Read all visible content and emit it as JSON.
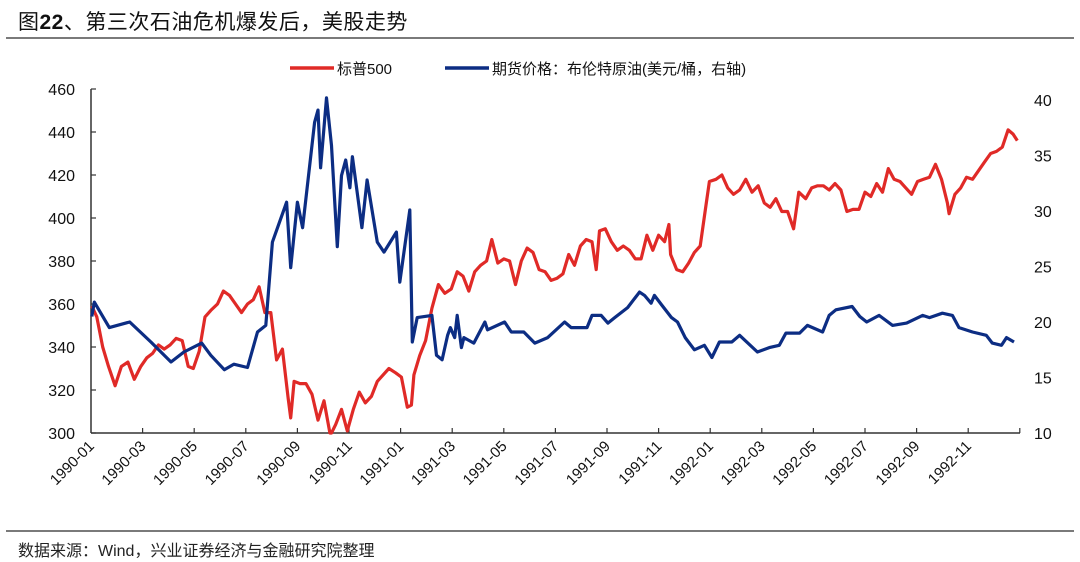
{
  "header": {
    "title_prefix": "图",
    "title_number": "22",
    "title_text": "、第三次石油危机爆发后，美股走势"
  },
  "footer": {
    "source": "数据来源：Wind，兴业证券经济与金融研究院整理"
  },
  "chart_data": {
    "type": "line",
    "title": "图22、第三次石油危机爆发后，美股走势",
    "legend_position": "top-center",
    "grid": false,
    "x_ticks": [
      "1990-01",
      "1990-03",
      "1990-05",
      "1990-07",
      "1990-09",
      "1990-11",
      "1991-01",
      "1991-03",
      "1991-05",
      "1991-07",
      "1991-09",
      "1991-11",
      "1992-01",
      "1992-03",
      "1992-05",
      "1992-07",
      "1992-09",
      "1992-11"
    ],
    "x_range": [
      "1990-01-01",
      "1992-12-31"
    ],
    "y_left": {
      "lim": [
        300,
        460
      ],
      "ticks": [
        300,
        320,
        340,
        360,
        380,
        400,
        420,
        440,
        460
      ]
    },
    "y_right": {
      "lim": [
        10,
        41
      ],
      "ticks": [
        10,
        15,
        20,
        25,
        30,
        35,
        40
      ]
    },
    "series": [
      {
        "name": "标普500",
        "axis": "left",
        "color": "#e02a27",
        "points": [
          [
            "1990-01-02",
            359
          ],
          [
            "1990-01-08",
            354
          ],
          [
            "1990-01-15",
            340
          ],
          [
            "1990-01-22",
            331
          ],
          [
            "1990-01-30",
            322
          ],
          [
            "1990-02-06",
            331
          ],
          [
            "1990-02-13",
            333
          ],
          [
            "1990-02-20",
            325
          ],
          [
            "1990-02-27",
            331
          ],
          [
            "1990-03-06",
            335
          ],
          [
            "1990-03-13",
            337
          ],
          [
            "1990-03-20",
            341
          ],
          [
            "1990-03-27",
            339
          ],
          [
            "1990-04-03",
            341
          ],
          [
            "1990-04-10",
            344
          ],
          [
            "1990-04-17",
            343
          ],
          [
            "1990-04-24",
            331
          ],
          [
            "1990-04-30",
            330
          ],
          [
            "1990-05-07",
            338
          ],
          [
            "1990-05-14",
            354
          ],
          [
            "1990-05-21",
            357
          ],
          [
            "1990-05-29",
            360
          ],
          [
            "1990-06-05",
            366
          ],
          [
            "1990-06-12",
            364
          ],
          [
            "1990-06-19",
            360
          ],
          [
            "1990-06-26",
            356
          ],
          [
            "1990-07-03",
            360
          ],
          [
            "1990-07-10",
            362
          ],
          [
            "1990-07-17",
            368
          ],
          [
            "1990-07-24",
            356
          ],
          [
            "1990-07-31",
            356
          ],
          [
            "1990-08-07",
            334
          ],
          [
            "1990-08-14",
            339
          ],
          [
            "1990-08-21",
            316
          ],
          [
            "1990-08-24",
            307
          ],
          [
            "1990-08-28",
            324
          ],
          [
            "1990-09-04",
            323
          ],
          [
            "1990-09-11",
            323
          ],
          [
            "1990-09-18",
            318
          ],
          [
            "1990-09-25",
            306
          ],
          [
            "1990-10-02",
            315
          ],
          [
            "1990-10-09",
            300
          ],
          [
            "1990-10-11",
            300
          ],
          [
            "1990-10-16",
            304
          ],
          [
            "1990-10-23",
            311
          ],
          [
            "1990-10-30",
            301
          ],
          [
            "1990-11-06",
            311
          ],
          [
            "1990-11-13",
            319
          ],
          [
            "1990-11-20",
            314
          ],
          [
            "1990-11-27",
            317
          ],
          [
            "1990-12-04",
            324
          ],
          [
            "1990-12-11",
            327
          ],
          [
            "1990-12-18",
            330
          ],
          [
            "1990-12-26",
            328
          ],
          [
            "1991-01-02",
            326
          ],
          [
            "1991-01-09",
            312
          ],
          [
            "1991-01-14",
            313
          ],
          [
            "1991-01-17",
            327
          ],
          [
            "1991-01-24",
            336
          ],
          [
            "1991-01-31",
            343
          ],
          [
            "1991-02-07",
            358
          ],
          [
            "1991-02-14",
            369
          ],
          [
            "1991-02-21",
            365
          ],
          [
            "1991-02-28",
            367
          ],
          [
            "1991-03-07",
            375
          ],
          [
            "1991-03-14",
            373
          ],
          [
            "1991-03-21",
            366
          ],
          [
            "1991-03-28",
            375
          ],
          [
            "1991-04-04",
            378
          ],
          [
            "1991-04-11",
            380
          ],
          [
            "1991-04-17",
            390
          ],
          [
            "1991-04-24",
            379
          ],
          [
            "1991-05-01",
            381
          ],
          [
            "1991-05-08",
            380
          ],
          [
            "1991-05-15",
            369
          ],
          [
            "1991-05-22",
            380
          ],
          [
            "1991-05-29",
            386
          ],
          [
            "1991-06-05",
            384
          ],
          [
            "1991-06-12",
            376
          ],
          [
            "1991-06-19",
            375
          ],
          [
            "1991-06-26",
            371
          ],
          [
            "1991-07-03",
            372
          ],
          [
            "1991-07-10",
            374
          ],
          [
            "1991-07-17",
            383
          ],
          [
            "1991-07-24",
            378
          ],
          [
            "1991-07-31",
            387
          ],
          [
            "1991-08-07",
            390
          ],
          [
            "1991-08-14",
            389
          ],
          [
            "1991-08-19",
            376
          ],
          [
            "1991-08-23",
            394
          ],
          [
            "1991-08-30",
            395
          ],
          [
            "1991-09-06",
            389
          ],
          [
            "1991-09-13",
            385
          ],
          [
            "1991-09-20",
            387
          ],
          [
            "1991-09-27",
            385
          ],
          [
            "1991-10-04",
            381
          ],
          [
            "1991-10-11",
            381
          ],
          [
            "1991-10-18",
            392
          ],
          [
            "1991-10-25",
            385
          ],
          [
            "1991-11-01",
            392
          ],
          [
            "1991-11-08",
            389
          ],
          [
            "1991-11-13",
            397
          ],
          [
            "1991-11-15",
            383
          ],
          [
            "1991-11-22",
            376
          ],
          [
            "1991-11-29",
            375
          ],
          [
            "1991-12-06",
            379
          ],
          [
            "1991-12-13",
            384
          ],
          [
            "1991-12-20",
            387
          ],
          [
            "1991-12-27",
            406
          ],
          [
            "1991-12-31",
            417
          ],
          [
            "1992-01-08",
            418
          ],
          [
            "1992-01-15",
            420
          ],
          [
            "1992-01-22",
            414
          ],
          [
            "1992-01-29",
            411
          ],
          [
            "1992-02-05",
            413
          ],
          [
            "1992-02-12",
            418
          ],
          [
            "1992-02-19",
            412
          ],
          [
            "1992-02-26",
            415
          ],
          [
            "1992-03-04",
            407
          ],
          [
            "1992-03-11",
            405
          ],
          [
            "1992-03-18",
            409
          ],
          [
            "1992-03-25",
            403
          ],
          [
            "1992-04-01",
            403
          ],
          [
            "1992-04-08",
            395
          ],
          [
            "1992-04-14",
            412
          ],
          [
            "1992-04-22",
            409
          ],
          [
            "1992-04-29",
            414
          ],
          [
            "1992-05-06",
            415
          ],
          [
            "1992-05-13",
            415
          ],
          [
            "1992-05-20",
            413
          ],
          [
            "1992-05-27",
            416
          ],
          [
            "1992-06-03",
            413
          ],
          [
            "1992-06-10",
            403
          ],
          [
            "1992-06-17",
            404
          ],
          [
            "1992-06-24",
            404
          ],
          [
            "1992-07-01",
            412
          ],
          [
            "1992-07-08",
            410
          ],
          [
            "1992-07-15",
            416
          ],
          [
            "1992-07-22",
            412
          ],
          [
            "1992-07-29",
            423
          ],
          [
            "1992-08-05",
            418
          ],
          [
            "1992-08-12",
            417
          ],
          [
            "1992-08-19",
            414
          ],
          [
            "1992-08-26",
            411
          ],
          [
            "1992-09-02",
            417
          ],
          [
            "1992-09-09",
            418
          ],
          [
            "1992-09-16",
            419
          ],
          [
            "1992-09-23",
            425
          ],
          [
            "1992-09-30",
            418
          ],
          [
            "1992-10-07",
            407
          ],
          [
            "1992-10-09",
            402
          ],
          [
            "1992-10-16",
            411
          ],
          [
            "1992-10-23",
            414
          ],
          [
            "1992-10-30",
            419
          ],
          [
            "1992-11-06",
            418
          ],
          [
            "1992-11-13",
            422
          ],
          [
            "1992-11-20",
            426
          ],
          [
            "1992-11-27",
            430
          ],
          [
            "1992-12-04",
            431
          ],
          [
            "1992-12-11",
            433
          ],
          [
            "1992-12-18",
            441
          ],
          [
            "1992-12-24",
            439
          ],
          [
            "1992-12-29",
            436
          ]
        ]
      },
      {
        "name": "期货价格：布伦特原油(美元/桶，右轴)",
        "axis": "right",
        "color": "#0c2d83",
        "points": [
          [
            "1990-01-02",
            20.5
          ],
          [
            "1990-01-05",
            21.8
          ],
          [
            "1990-01-23",
            19.5
          ],
          [
            "1990-02-15",
            20.0
          ],
          [
            "1990-03-11",
            18.2
          ],
          [
            "1990-04-04",
            16.4
          ],
          [
            "1990-04-19",
            17.3
          ],
          [
            "1990-05-10",
            18.1
          ],
          [
            "1990-05-21",
            17.0
          ],
          [
            "1990-06-06",
            15.7
          ],
          [
            "1990-06-17",
            16.2
          ],
          [
            "1990-07-03",
            15.9
          ],
          [
            "1990-07-15",
            19.1
          ],
          [
            "1990-07-25",
            19.7
          ],
          [
            "1990-08-02",
            27.2
          ],
          [
            "1990-08-19",
            30.8
          ],
          [
            "1990-08-24",
            24.9
          ],
          [
            "1990-09-01",
            30.8
          ],
          [
            "1990-09-07",
            28.5
          ],
          [
            "1990-09-21",
            38.0
          ],
          [
            "1990-09-25",
            39.1
          ],
          [
            "1990-09-28",
            33.9
          ],
          [
            "1990-10-05",
            40.2
          ],
          [
            "1990-10-11",
            35.9
          ],
          [
            "1990-10-18",
            26.8
          ],
          [
            "1990-10-23",
            33.2
          ],
          [
            "1990-10-28",
            34.6
          ],
          [
            "1990-11-02",
            32.1
          ],
          [
            "1990-11-05",
            34.9
          ],
          [
            "1990-11-16",
            28.5
          ],
          [
            "1990-11-22",
            32.8
          ],
          [
            "1990-12-04",
            27.2
          ],
          [
            "1990-12-12",
            26.3
          ],
          [
            "1990-12-27",
            28.1
          ],
          [
            "1990-12-31",
            23.6
          ],
          [
            "1991-01-12",
            30.1
          ],
          [
            "1991-01-15",
            18.2
          ],
          [
            "1991-01-21",
            20.4
          ],
          [
            "1991-02-07",
            20.6
          ],
          [
            "1991-02-12",
            17.0
          ],
          [
            "1991-02-18",
            16.6
          ],
          [
            "1991-02-24",
            18.8
          ],
          [
            "1991-02-27",
            19.5
          ],
          [
            "1991-03-04",
            18.6
          ],
          [
            "1991-03-07",
            20.6
          ],
          [
            "1991-03-12",
            17.7
          ],
          [
            "1991-03-15",
            18.6
          ],
          [
            "1991-03-27",
            18.1
          ],
          [
            "1991-04-09",
            20.0
          ],
          [
            "1991-04-12",
            19.3
          ],
          [
            "1991-05-02",
            20.0
          ],
          [
            "1991-05-10",
            19.1
          ],
          [
            "1991-05-25",
            19.1
          ],
          [
            "1991-06-07",
            18.1
          ],
          [
            "1991-06-22",
            18.6
          ],
          [
            "1991-07-12",
            20.0
          ],
          [
            "1991-07-20",
            19.5
          ],
          [
            "1991-08-08",
            19.5
          ],
          [
            "1991-08-14",
            20.6
          ],
          [
            "1991-08-25",
            20.6
          ],
          [
            "1991-09-02",
            19.9
          ],
          [
            "1991-09-10",
            20.4
          ],
          [
            "1991-09-25",
            21.3
          ],
          [
            "1991-10-09",
            22.7
          ],
          [
            "1991-10-15",
            22.4
          ],
          [
            "1991-10-23",
            21.7
          ],
          [
            "1991-10-27",
            22.4
          ],
          [
            "1991-11-05",
            21.5
          ],
          [
            "1991-11-16",
            20.4
          ],
          [
            "1991-11-23",
            20.0
          ],
          [
            "1991-12-02",
            18.6
          ],
          [
            "1991-12-13",
            17.5
          ],
          [
            "1991-12-25",
            17.9
          ],
          [
            "1992-01-03",
            16.8
          ],
          [
            "1992-01-12",
            18.2
          ],
          [
            "1992-01-27",
            18.2
          ],
          [
            "1992-02-05",
            18.8
          ],
          [
            "1992-02-25",
            17.3
          ],
          [
            "1992-03-10",
            17.7
          ],
          [
            "1992-03-22",
            17.9
          ],
          [
            "1992-03-30",
            19.0
          ],
          [
            "1992-04-15",
            19.0
          ],
          [
            "1992-04-24",
            19.7
          ],
          [
            "1992-05-12",
            19.1
          ],
          [
            "1992-05-20",
            20.6
          ],
          [
            "1992-05-28",
            21.1
          ],
          [
            "1992-06-16",
            21.4
          ],
          [
            "1992-06-25",
            20.5
          ],
          [
            "1992-07-03",
            20.0
          ],
          [
            "1992-07-18",
            20.6
          ],
          [
            "1992-08-03",
            19.7
          ],
          [
            "1992-08-20",
            19.9
          ],
          [
            "1992-09-08",
            20.6
          ],
          [
            "1992-09-16",
            20.4
          ],
          [
            "1992-10-01",
            20.8
          ],
          [
            "1992-10-13",
            20.6
          ],
          [
            "1992-10-21",
            19.5
          ],
          [
            "1992-11-06",
            19.1
          ],
          [
            "1992-11-22",
            18.8
          ],
          [
            "1992-11-29",
            18.1
          ],
          [
            "1992-12-10",
            17.9
          ],
          [
            "1992-12-16",
            18.6
          ],
          [
            "1992-12-25",
            18.2
          ]
        ]
      }
    ]
  }
}
